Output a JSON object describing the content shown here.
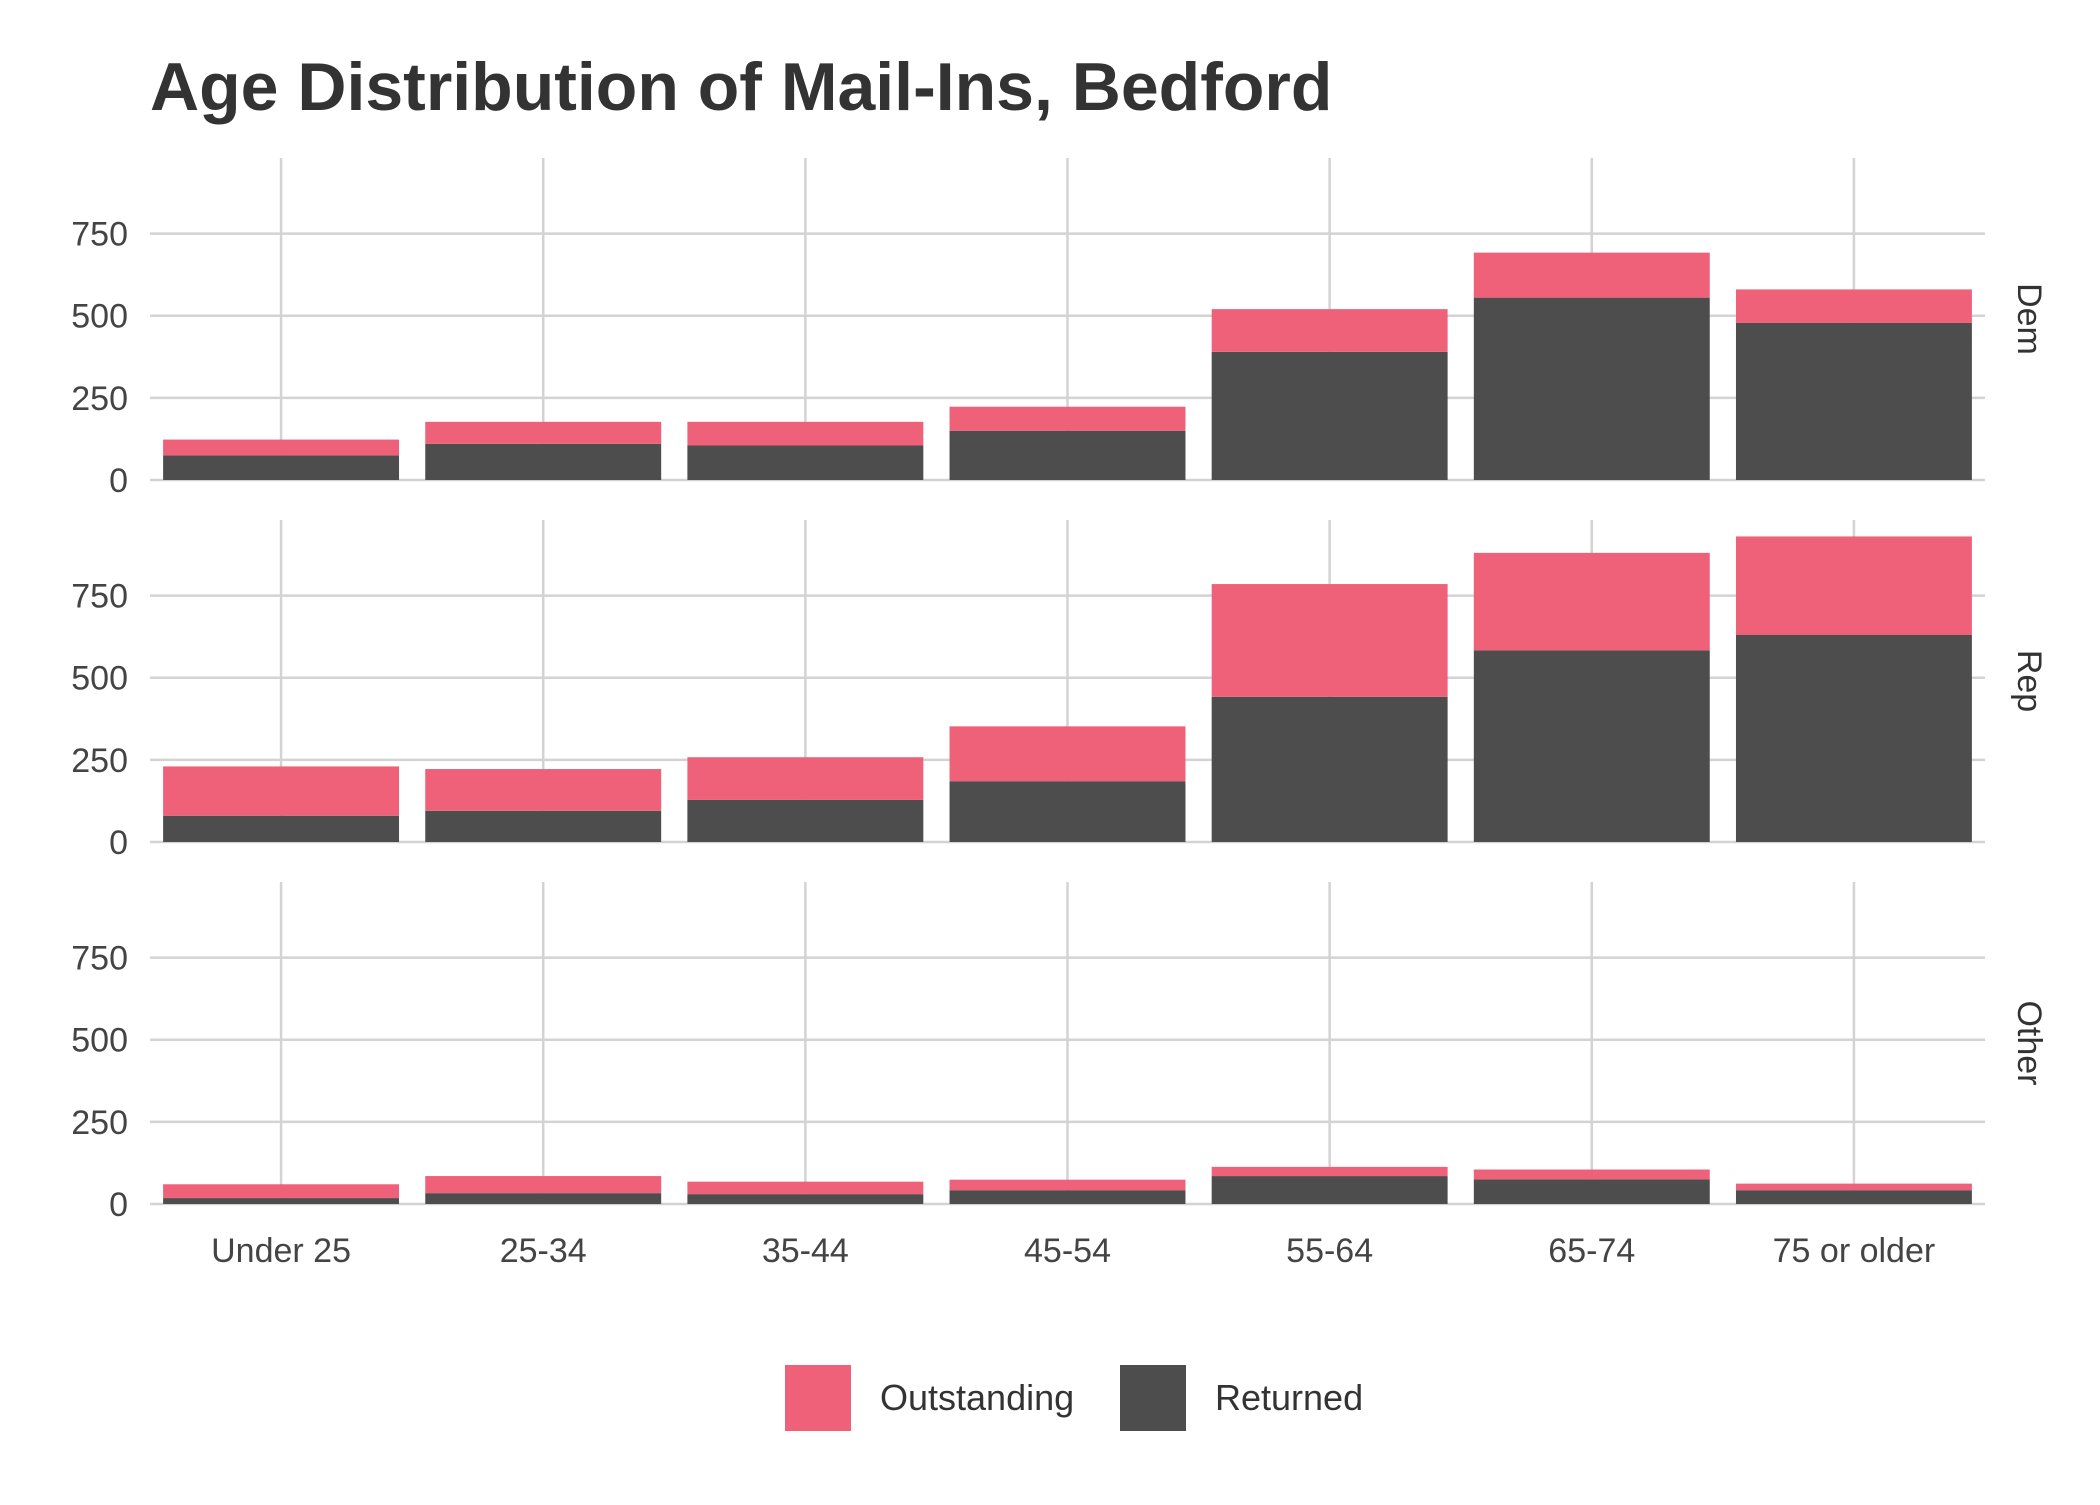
{
  "chart_data": {
    "type": "bar",
    "stacked": true,
    "title": "Age Distribution of Mail-Ins, Bedford",
    "xlabel": "",
    "ylabel": "",
    "categories": [
      "Under 25",
      "25-34",
      "35-44",
      "45-54",
      "55-64",
      "65-74",
      "75 or older"
    ],
    "ylim": [
      0,
      980
    ],
    "yticks": [
      0,
      250,
      500,
      750
    ],
    "grid": true,
    "legend_position": "bottom",
    "series_meta": [
      {
        "name": "Outstanding",
        "color": "#EF6079"
      },
      {
        "name": "Returned",
        "color": "#4D4D4D"
      }
    ],
    "facets": [
      {
        "label": "Dem",
        "series": [
          {
            "name": "Returned",
            "values": [
              75,
              110,
              105,
              150,
              390,
              555,
              478
            ]
          },
          {
            "name": "Outstanding",
            "values": [
              48,
              67,
              72,
              73,
              130,
              137,
              102
            ]
          }
        ]
      },
      {
        "label": "Rep",
        "series": [
          {
            "name": "Returned",
            "values": [
              80,
              95,
              128,
              185,
              442,
              583,
              630
            ]
          },
          {
            "name": "Outstanding",
            "values": [
              150,
              127,
              130,
              167,
              343,
              297,
              300
            ]
          }
        ]
      },
      {
        "label": "Other",
        "series": [
          {
            "name": "Returned",
            "values": [
              18,
              33,
              30,
              42,
              85,
              75,
              42
            ]
          },
          {
            "name": "Outstanding",
            "values": [
              42,
              52,
              38,
              32,
              28,
              30,
              20
            ]
          }
        ]
      }
    ]
  }
}
